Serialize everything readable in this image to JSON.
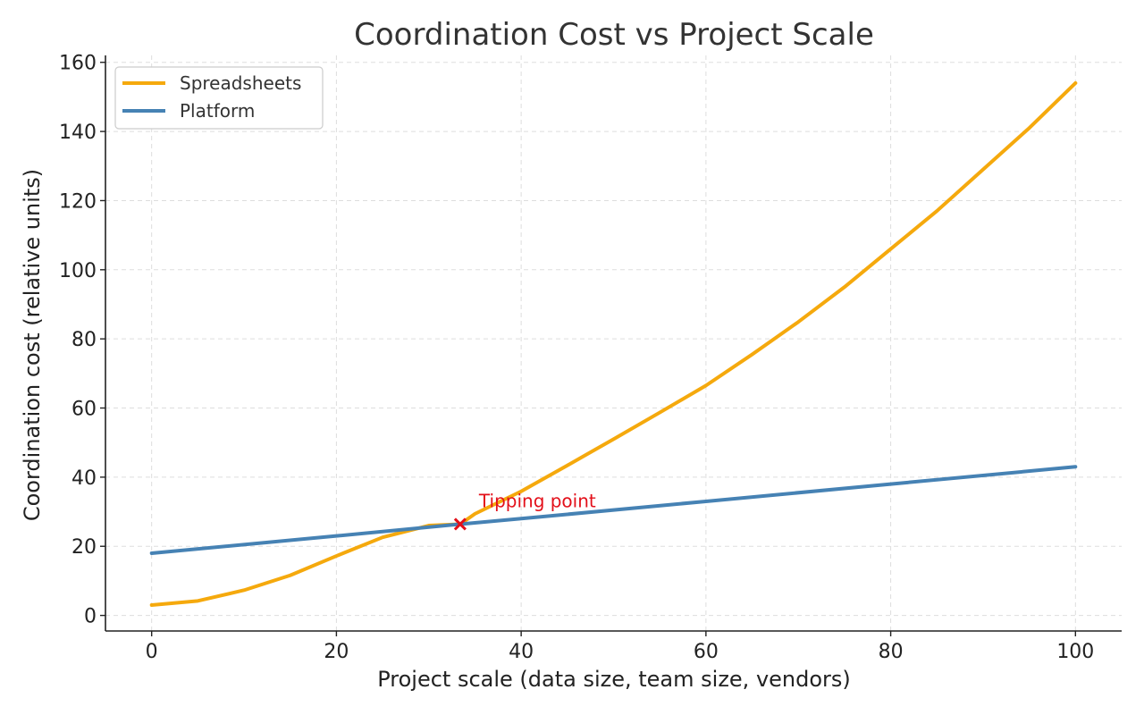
{
  "chart_data": {
    "type": "line",
    "title": "Coordination Cost vs Project Scale",
    "xlabel": "Project scale (data size, team size, vendors)",
    "ylabel": "Coordination cost (relative units)",
    "xlim": [
      -5,
      105
    ],
    "ylim": [
      -4.5,
      162
    ],
    "xticks": [
      0,
      20,
      40,
      60,
      80,
      100
    ],
    "yticks": [
      0,
      20,
      40,
      60,
      80,
      100,
      120,
      140,
      160
    ],
    "grid": true,
    "legend_position": "top-left",
    "series": [
      {
        "name": "Spreadsheets",
        "color": "#F5A90D",
        "x": [
          0,
          5,
          10,
          15,
          20,
          25,
          30,
          33.4,
          35,
          40,
          45,
          50,
          55,
          60,
          65,
          70,
          75,
          80,
          85,
          90,
          95,
          100
        ],
        "y": [
          3.0,
          4.2,
          7.3,
          11.6,
          17.2,
          22.6,
          26.0,
          26.4,
          29.4,
          35.9,
          43.4,
          51.0,
          58.7,
          66.5,
          75.5,
          84.9,
          95.0,
          106.0,
          117.0,
          129.0,
          141.0,
          154.0
        ]
      },
      {
        "name": "Platform",
        "color": "#4682B4",
        "x": [
          0,
          20,
          33.4,
          40,
          60,
          80,
          100
        ],
        "y": [
          18.0,
          23.0,
          26.4,
          28.0,
          33.0,
          38.0,
          43.0
        ]
      }
    ],
    "annotations": [
      {
        "text": "Tipping point",
        "x": 33.4,
        "y": 26.4,
        "marker": "x",
        "color": "#E3101A"
      }
    ]
  }
}
